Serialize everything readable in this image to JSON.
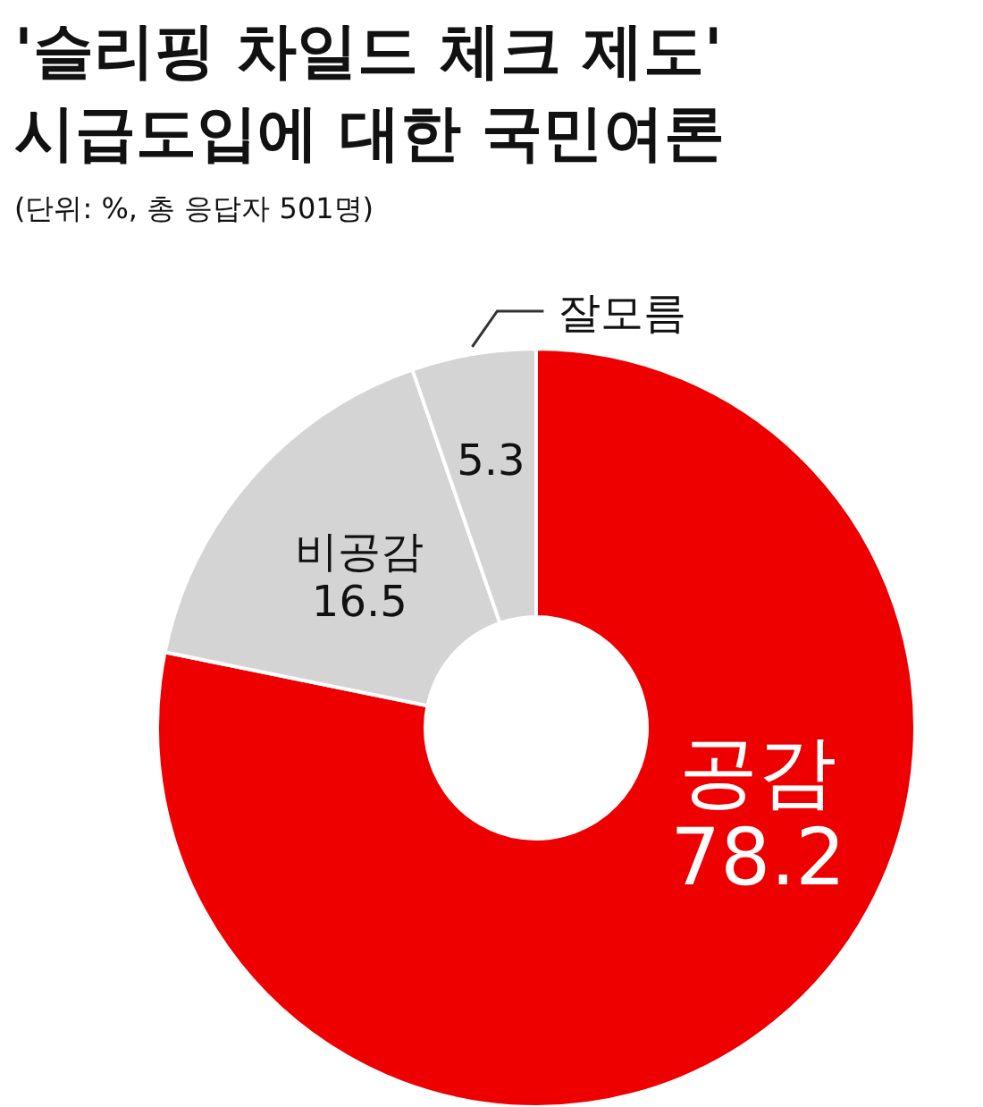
{
  "chart_data": {
    "type": "donut",
    "title": "'슬리핑 차일드 체크 제도'\n시급도입에 대한 국민여론",
    "subtitle": "(단위: %, 총 응답자 501명)",
    "categories": [
      "공감",
      "비공감",
      "잘모름"
    ],
    "values": [
      78.2,
      16.5,
      5.3
    ],
    "colors": [
      "#ee0000",
      "#d4d4d4",
      "#d4d4d4"
    ],
    "data_labels": true
  }
}
